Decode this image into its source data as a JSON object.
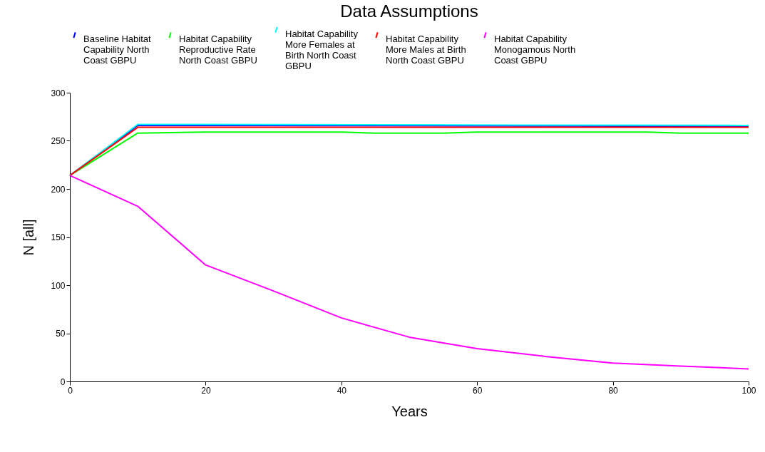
{
  "chart_data": {
    "type": "line",
    "title": "Data Assumptions",
    "xlabel": "Years",
    "ylabel": "N [all]",
    "xlim": [
      0,
      100
    ],
    "xticks": [
      0,
      20,
      40,
      60,
      80,
      100
    ],
    "ylim": [
      0,
      300
    ],
    "yticks": [
      0,
      50,
      100,
      150,
      200,
      250,
      300
    ],
    "legend": "top",
    "grid": false,
    "series": [
      {
        "name": "Baseline Habitat Capability North Coast GBPU",
        "color": "#0000ff",
        "x": [
          0,
          10,
          20,
          100
        ],
        "values": [
          214,
          266,
          266,
          265
        ]
      },
      {
        "name": "Habitat Capability Reproductive Rate North Coast GBPU",
        "color": "#00ff00",
        "x": [
          0,
          10,
          20,
          40,
          45,
          55,
          60,
          85,
          90,
          100
        ],
        "values": [
          214,
          258,
          259,
          259,
          258,
          258,
          259,
          259,
          258,
          258
        ]
      },
      {
        "name": "Habitat Capability More Females at Birth North Coast GBPU",
        "color": "#00ffff",
        "x": [
          0,
          10,
          20,
          100
        ],
        "values": [
          214,
          267,
          267,
          266
        ]
      },
      {
        "name": "Habitat Capability More Males at Birth North Coast GBPU",
        "color": "#ff0000",
        "x": [
          0,
          10,
          20,
          100
        ],
        "values": [
          214,
          264,
          264,
          264
        ]
      },
      {
        "name": "Habitat Capability Monogamous North Coast GBPU",
        "color": "#ff00ff",
        "x": [
          0,
          10,
          20,
          30,
          40,
          50,
          60,
          70,
          80,
          90,
          100
        ],
        "values": [
          214,
          182,
          121,
          94,
          66,
          46,
          34,
          26,
          19,
          16,
          13
        ]
      }
    ]
  }
}
